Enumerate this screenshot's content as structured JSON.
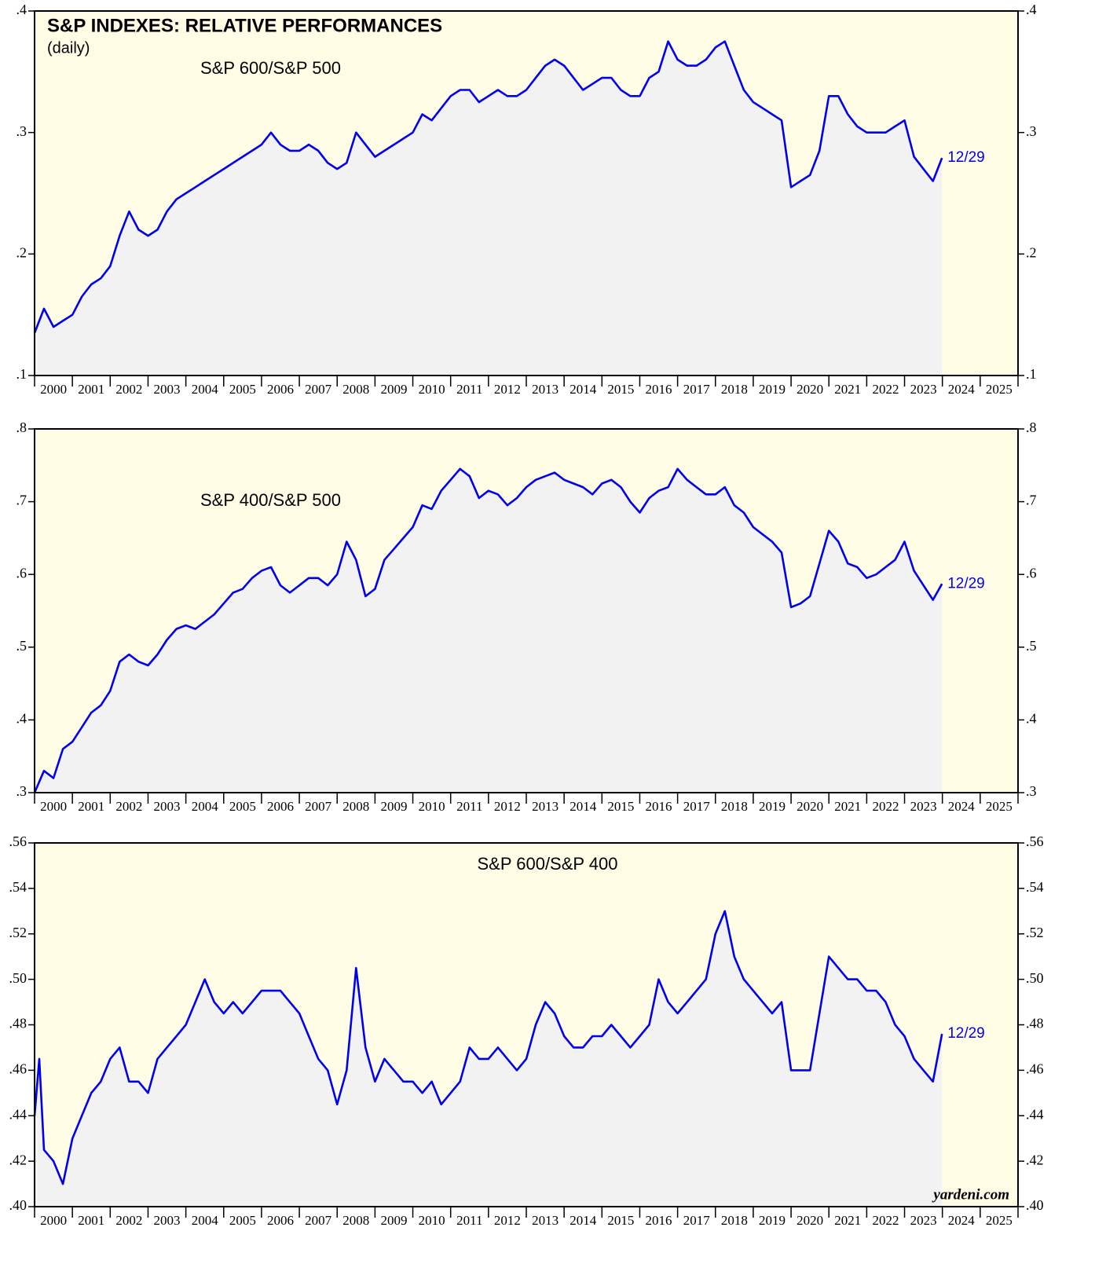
{
  "title": "S&P INDEXES: RELATIVE PERFORMANCES",
  "subtitle": "(daily)",
  "source": "yardeni.com",
  "chart_data": [
    {
      "type": "line",
      "label": "S&P 600/S&P 500",
      "annotation": "12/29",
      "color": "#0000ee",
      "xlim": [
        2000,
        2026
      ],
      "xticks": [
        2000,
        2001,
        2002,
        2003,
        2004,
        2005,
        2006,
        2007,
        2008,
        2009,
        2010,
        2011,
        2012,
        2013,
        2014,
        2015,
        2016,
        2017,
        2018,
        2019,
        2020,
        2021,
        2022,
        2023,
        2024,
        2025
      ],
      "ylim": [
        0.1,
        0.4
      ],
      "yticks": [
        {
          "value": 0.1,
          "label": ".1"
        },
        {
          "value": 0.2,
          "label": ".2"
        },
        {
          "value": 0.3,
          "label": ".3"
        },
        {
          "value": 0.4,
          "label": ".4"
        }
      ],
      "x": [
        2000,
        2000.25,
        2000.5,
        2000.75,
        2001,
        2001.25,
        2001.5,
        2001.75,
        2002,
        2002.25,
        2002.5,
        2002.75,
        2003,
        2003.25,
        2003.5,
        2003.75,
        2004,
        2004.25,
        2004.5,
        2004.75,
        2005,
        2005.25,
        2005.5,
        2005.75,
        2006,
        2006.25,
        2006.5,
        2006.75,
        2007,
        2007.25,
        2007.5,
        2007.75,
        2008,
        2008.25,
        2008.5,
        2008.75,
        2009,
        2009.25,
        2009.5,
        2009.75,
        2010,
        2010.25,
        2010.5,
        2010.75,
        2011,
        2011.25,
        2011.5,
        2011.75,
        2012,
        2012.25,
        2012.5,
        2012.75,
        2013,
        2013.25,
        2013.5,
        2013.75,
        2014,
        2014.25,
        2014.5,
        2014.75,
        2015,
        2015.25,
        2015.5,
        2015.75,
        2016,
        2016.25,
        2016.5,
        2016.75,
        2017,
        2017.25,
        2017.5,
        2017.75,
        2018,
        2018.25,
        2018.5,
        2018.75,
        2019,
        2019.25,
        2019.5,
        2019.75,
        2020,
        2020.25,
        2020.5,
        2020.75,
        2021,
        2021.25,
        2021.5,
        2021.75,
        2022,
        2022.25,
        2022.5,
        2022.75,
        2023,
        2023.25,
        2023.5,
        2023.75,
        2023.99
      ],
      "values": [
        0.135,
        0.155,
        0.14,
        0.145,
        0.15,
        0.165,
        0.175,
        0.18,
        0.19,
        0.215,
        0.235,
        0.22,
        0.215,
        0.22,
        0.235,
        0.245,
        0.25,
        0.255,
        0.26,
        0.265,
        0.27,
        0.275,
        0.28,
        0.285,
        0.29,
        0.3,
        0.29,
        0.285,
        0.285,
        0.29,
        0.285,
        0.275,
        0.27,
        0.275,
        0.3,
        0.29,
        0.28,
        0.285,
        0.29,
        0.295,
        0.3,
        0.315,
        0.31,
        0.32,
        0.33,
        0.335,
        0.335,
        0.325,
        0.33,
        0.335,
        0.33,
        0.33,
        0.335,
        0.345,
        0.355,
        0.36,
        0.355,
        0.345,
        0.335,
        0.34,
        0.345,
        0.345,
        0.335,
        0.33,
        0.33,
        0.345,
        0.35,
        0.375,
        0.36,
        0.355,
        0.355,
        0.36,
        0.37,
        0.375,
        0.355,
        0.335,
        0.325,
        0.32,
        0.315,
        0.31,
        0.255,
        0.26,
        0.265,
        0.285,
        0.33,
        0.33,
        0.315,
        0.305,
        0.3,
        0.3,
        0.3,
        0.305,
        0.31,
        0.28,
        0.27,
        0.26,
        0.279
      ]
    },
    {
      "type": "line",
      "label": "S&P 400/S&P 500",
      "annotation": "12/29",
      "color": "#0000ee",
      "xlim": [
        2000,
        2026
      ],
      "xticks": [
        2000,
        2001,
        2002,
        2003,
        2004,
        2005,
        2006,
        2007,
        2008,
        2009,
        2010,
        2011,
        2012,
        2013,
        2014,
        2015,
        2016,
        2017,
        2018,
        2019,
        2020,
        2021,
        2022,
        2023,
        2024,
        2025
      ],
      "ylim": [
        0.3,
        0.8
      ],
      "yticks": [
        {
          "value": 0.3,
          "label": ".3"
        },
        {
          "value": 0.4,
          "label": ".4"
        },
        {
          "value": 0.5,
          "label": ".5"
        },
        {
          "value": 0.6,
          "label": ".6"
        },
        {
          "value": 0.7,
          "label": ".7"
        },
        {
          "value": 0.8,
          "label": ".8"
        }
      ],
      "x": [
        2000,
        2000.25,
        2000.5,
        2000.75,
        2001,
        2001.25,
        2001.5,
        2001.75,
        2002,
        2002.25,
        2002.5,
        2002.75,
        2003,
        2003.25,
        2003.5,
        2003.75,
        2004,
        2004.25,
        2004.5,
        2004.75,
        2005,
        2005.25,
        2005.5,
        2005.75,
        2006,
        2006.25,
        2006.5,
        2006.75,
        2007,
        2007.25,
        2007.5,
        2007.75,
        2008,
        2008.25,
        2008.5,
        2008.75,
        2009,
        2009.25,
        2009.5,
        2009.75,
        2010,
        2010.25,
        2010.5,
        2010.75,
        2011,
        2011.25,
        2011.5,
        2011.75,
        2012,
        2012.25,
        2012.5,
        2012.75,
        2013,
        2013.25,
        2013.5,
        2013.75,
        2014,
        2014.25,
        2014.5,
        2014.75,
        2015,
        2015.25,
        2015.5,
        2015.75,
        2016,
        2016.25,
        2016.5,
        2016.75,
        2017,
        2017.25,
        2017.5,
        2017.75,
        2018,
        2018.25,
        2018.5,
        2018.75,
        2019,
        2019.25,
        2019.5,
        2019.75,
        2020,
        2020.25,
        2020.5,
        2020.75,
        2021,
        2021.25,
        2021.5,
        2021.75,
        2022,
        2022.25,
        2022.5,
        2022.75,
        2023,
        2023.25,
        2023.5,
        2023.75,
        2023.99
      ],
      "values": [
        0.3,
        0.33,
        0.32,
        0.36,
        0.37,
        0.39,
        0.41,
        0.42,
        0.44,
        0.48,
        0.49,
        0.48,
        0.475,
        0.49,
        0.51,
        0.525,
        0.53,
        0.525,
        0.535,
        0.545,
        0.56,
        0.575,
        0.58,
        0.595,
        0.605,
        0.61,
        0.585,
        0.575,
        0.585,
        0.595,
        0.595,
        0.585,
        0.6,
        0.645,
        0.62,
        0.57,
        0.58,
        0.62,
        0.635,
        0.65,
        0.665,
        0.695,
        0.69,
        0.715,
        0.73,
        0.745,
        0.735,
        0.705,
        0.715,
        0.71,
        0.695,
        0.705,
        0.72,
        0.73,
        0.735,
        0.74,
        0.73,
        0.725,
        0.72,
        0.71,
        0.725,
        0.73,
        0.72,
        0.7,
        0.685,
        0.705,
        0.715,
        0.72,
        0.745,
        0.73,
        0.72,
        0.71,
        0.71,
        0.72,
        0.695,
        0.685,
        0.665,
        0.655,
        0.645,
        0.63,
        0.555,
        0.56,
        0.57,
        0.615,
        0.66,
        0.645,
        0.615,
        0.61,
        0.595,
        0.6,
        0.61,
        0.62,
        0.645,
        0.605,
        0.585,
        0.565,
        0.587
      ]
    },
    {
      "type": "line",
      "label": "S&P 600/S&P 400",
      "annotation": "12/29",
      "color": "#0000ee",
      "xlim": [
        2000,
        2026
      ],
      "xticks": [
        2000,
        2001,
        2002,
        2003,
        2004,
        2005,
        2006,
        2007,
        2008,
        2009,
        2010,
        2011,
        2012,
        2013,
        2014,
        2015,
        2016,
        2017,
        2018,
        2019,
        2020,
        2021,
        2022,
        2023,
        2024,
        2025
      ],
      "ylim": [
        0.4,
        0.56
      ],
      "yticks": [
        {
          "value": 0.4,
          "label": ".40"
        },
        {
          "value": 0.42,
          "label": ".42"
        },
        {
          "value": 0.44,
          "label": ".44"
        },
        {
          "value": 0.46,
          "label": ".46"
        },
        {
          "value": 0.48,
          "label": ".48"
        },
        {
          "value": 0.5,
          "label": ".50"
        },
        {
          "value": 0.52,
          "label": ".52"
        },
        {
          "value": 0.54,
          "label": ".54"
        },
        {
          "value": 0.56,
          "label": ".56"
        }
      ],
      "x": [
        2000,
        2000.125,
        2000.25,
        2000.5,
        2000.75,
        2001,
        2001.25,
        2001.5,
        2001.75,
        2002,
        2002.25,
        2002.5,
        2002.75,
        2003,
        2003.25,
        2003.5,
        2003.75,
        2004,
        2004.25,
        2004.5,
        2004.75,
        2005,
        2005.25,
        2005.5,
        2005.75,
        2006,
        2006.25,
        2006.5,
        2006.75,
        2007,
        2007.25,
        2007.5,
        2007.75,
        2008,
        2008.25,
        2008.5,
        2008.75,
        2009,
        2009.25,
        2009.5,
        2009.75,
        2010,
        2010.25,
        2010.5,
        2010.75,
        2011,
        2011.25,
        2011.5,
        2011.75,
        2012,
        2012.25,
        2012.5,
        2012.75,
        2013,
        2013.25,
        2013.5,
        2013.75,
        2014,
        2014.25,
        2014.5,
        2014.75,
        2015,
        2015.25,
        2015.5,
        2015.75,
        2016,
        2016.25,
        2016.5,
        2016.75,
        2017,
        2017.25,
        2017.5,
        2017.75,
        2018,
        2018.25,
        2018.5,
        2018.75,
        2019,
        2019.25,
        2019.5,
        2019.75,
        2020,
        2020.25,
        2020.5,
        2020.75,
        2021,
        2021.25,
        2021.5,
        2021.75,
        2022,
        2022.25,
        2022.5,
        2022.75,
        2023,
        2023.25,
        2023.5,
        2023.75,
        2023.99
      ],
      "values": [
        0.44,
        0.465,
        0.425,
        0.42,
        0.41,
        0.43,
        0.44,
        0.45,
        0.455,
        0.465,
        0.47,
        0.455,
        0.455,
        0.45,
        0.465,
        0.47,
        0.475,
        0.48,
        0.49,
        0.5,
        0.49,
        0.485,
        0.49,
        0.485,
        0.49,
        0.495,
        0.495,
        0.495,
        0.49,
        0.485,
        0.475,
        0.465,
        0.46,
        0.445,
        0.46,
        0.505,
        0.47,
        0.455,
        0.465,
        0.46,
        0.455,
        0.455,
        0.45,
        0.455,
        0.445,
        0.45,
        0.455,
        0.47,
        0.465,
        0.465,
        0.47,
        0.465,
        0.46,
        0.465,
        0.48,
        0.49,
        0.485,
        0.475,
        0.47,
        0.47,
        0.475,
        0.475,
        0.48,
        0.475,
        0.47,
        0.475,
        0.48,
        0.5,
        0.49,
        0.485,
        0.49,
        0.495,
        0.5,
        0.52,
        0.53,
        0.51,
        0.5,
        0.495,
        0.49,
        0.485,
        0.49,
        0.46,
        0.46,
        0.46,
        0.485,
        0.51,
        0.505,
        0.5,
        0.5,
        0.495,
        0.495,
        0.49,
        0.48,
        0.475,
        0.465,
        0.46,
        0.455,
        0.476
      ]
    }
  ]
}
